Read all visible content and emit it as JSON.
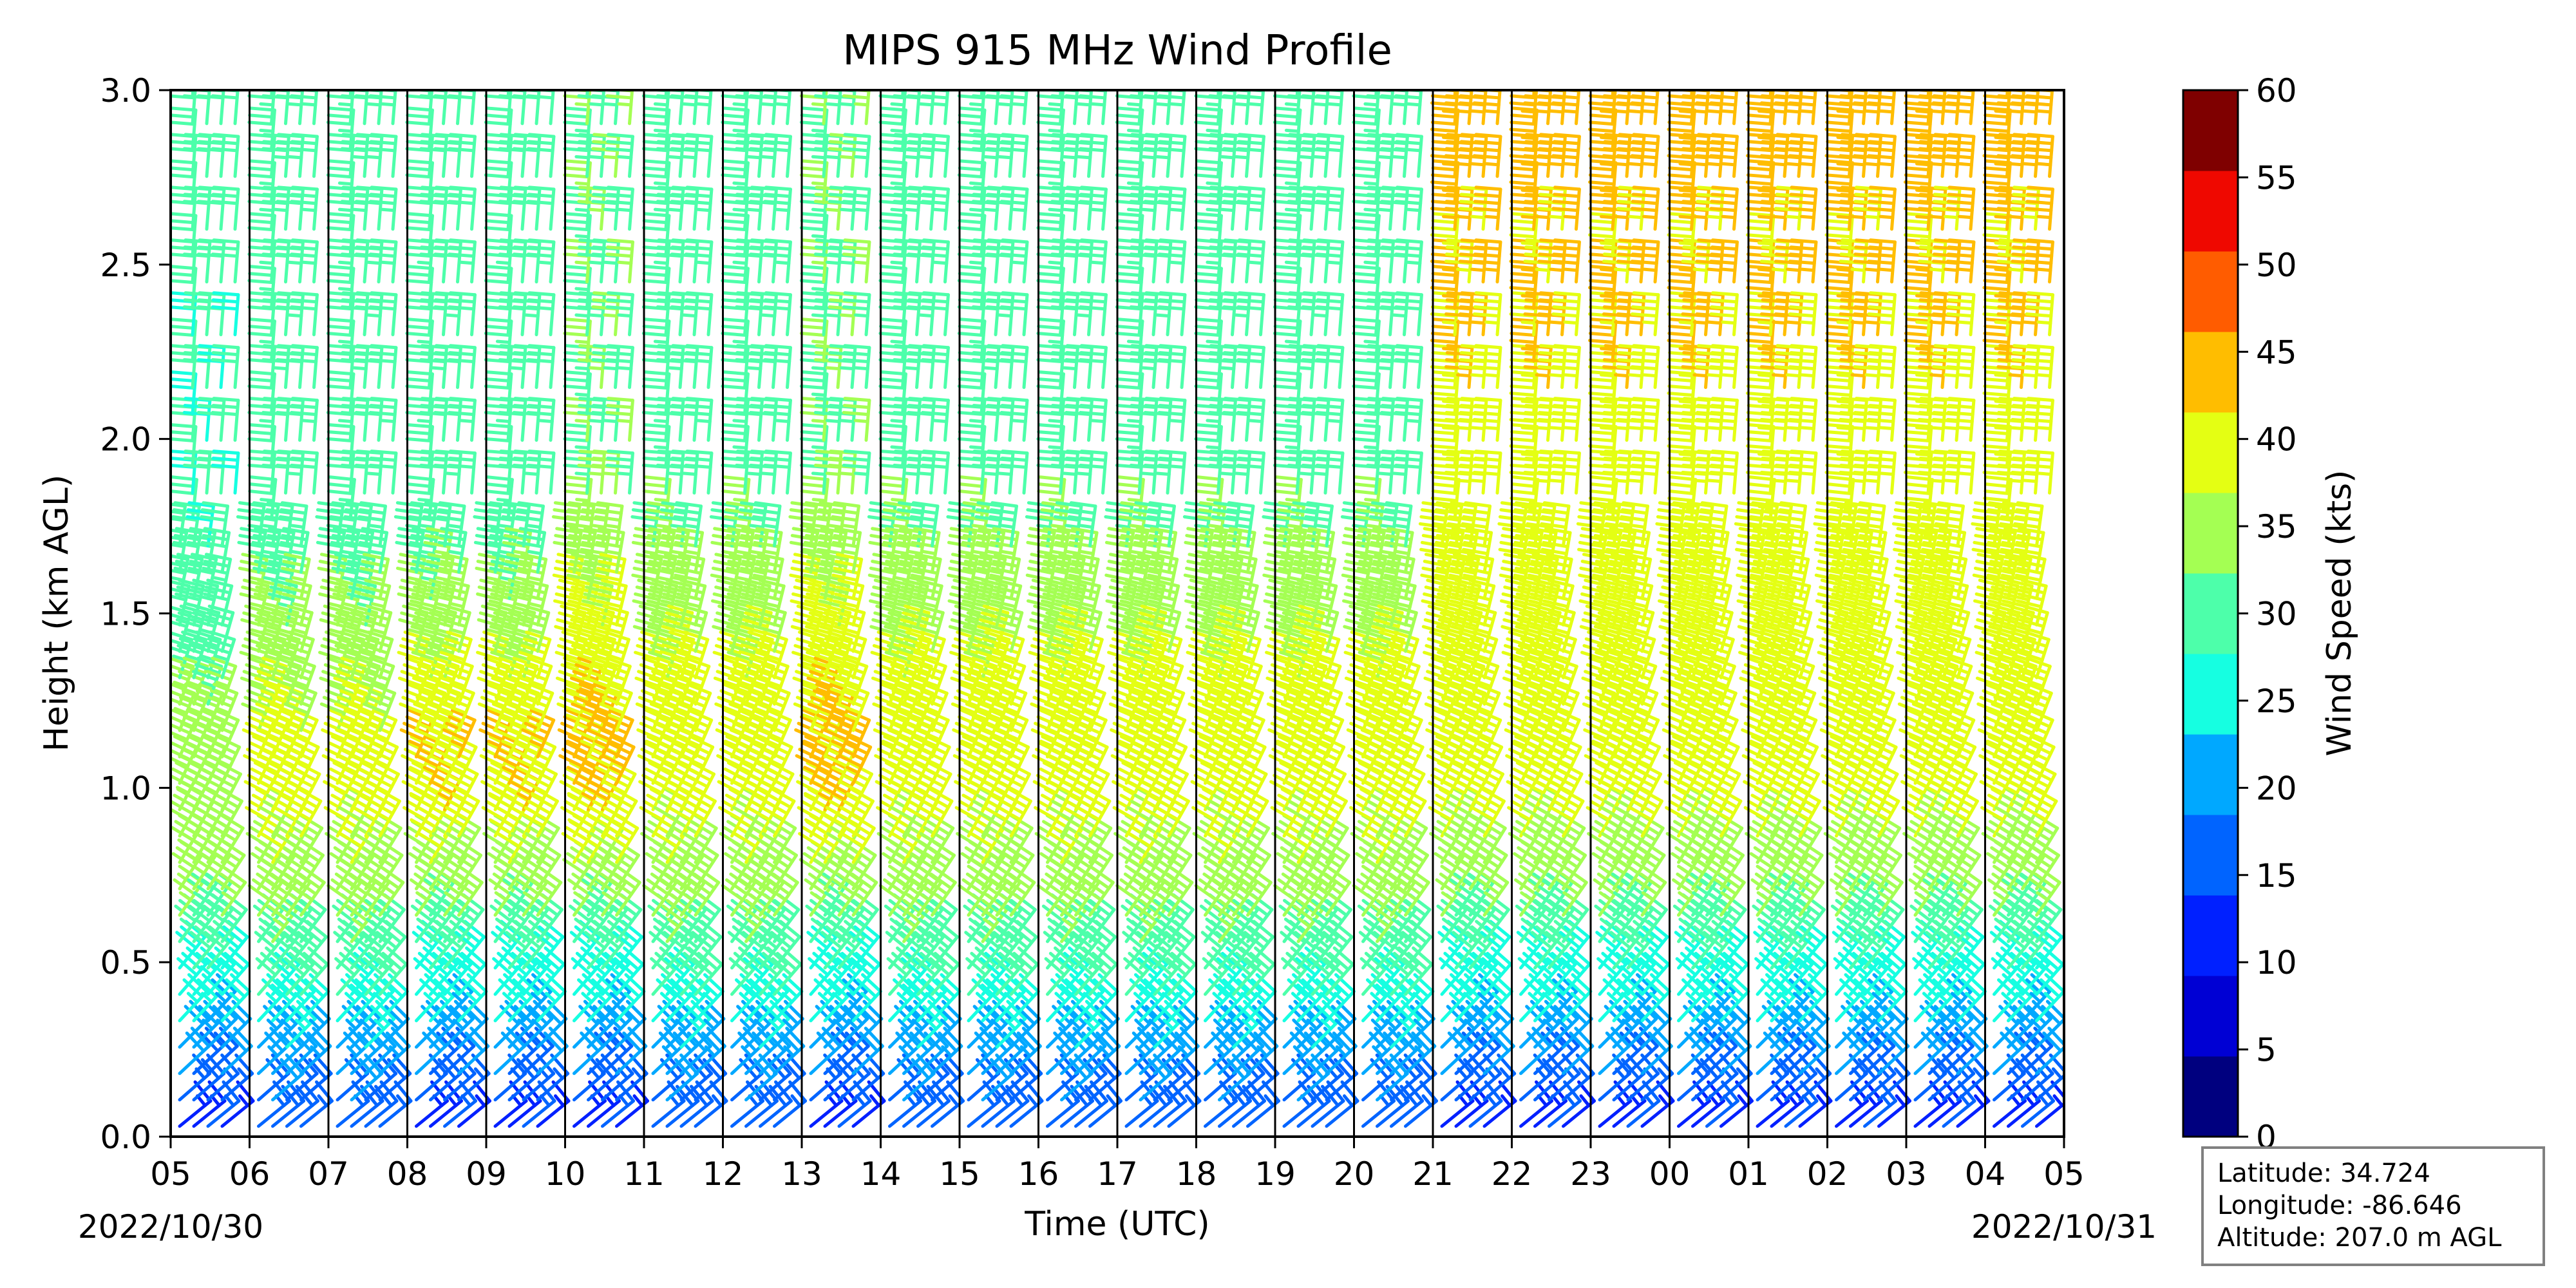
{
  "chart_data": {
    "type": "wind-barb-profile",
    "title": "MIPS 915 MHz Wind Profile",
    "xlabel": "Time (UTC)",
    "ylabel": "Height (km AGL)",
    "x_ticks": [
      "05",
      "06",
      "07",
      "08",
      "09",
      "10",
      "11",
      "12",
      "13",
      "14",
      "15",
      "16",
      "17",
      "18",
      "19",
      "20",
      "21",
      "22",
      "23",
      "00",
      "01",
      "02",
      "03",
      "04",
      "05"
    ],
    "start_date": "2022/10/30",
    "end_date": "2022/10/31",
    "ylim": [
      0,
      3.0
    ],
    "y_ticks": [
      "0.0",
      "0.5",
      "1.0",
      "1.5",
      "2.0",
      "2.5",
      "3.0"
    ],
    "hour_lines": true,
    "colorbar": {
      "label": "Wind Speed (kts)",
      "ticks": [
        "0",
        "5",
        "10",
        "15",
        "20",
        "25",
        "30",
        "35",
        "40",
        "45",
        "50",
        "55",
        "60"
      ],
      "colors": [
        "#00007f",
        "#0000d4",
        "#0020ff",
        "#0064ff",
        "#00a8ff",
        "#16ffe1",
        "#4dffaa",
        "#a4ff53",
        "#e4ff13",
        "#ffbd00",
        "#ff5c00",
        "#ef0800",
        "#7f0000"
      ]
    },
    "station": {
      "latitude": "Latitude: 34.724",
      "longitude": "Longitude: -86.646",
      "altitude": "Altitude: 207.0 m AGL"
    },
    "profiles": [
      {
        "hour": "05",
        "speeds": [
          14,
          20,
          27,
          33,
          37,
          38,
          37,
          34,
          32,
          31,
          30,
          30,
          30,
          31,
          31,
          31,
          31
        ]
      },
      {
        "hour": "06",
        "speeds": [
          17,
          22,
          29,
          35,
          39,
          42,
          41,
          38,
          35,
          33,
          32,
          32,
          32,
          33,
          33,
          33,
          33
        ]
      },
      {
        "hour": "07",
        "speeds": [
          17,
          22,
          29,
          35,
          39,
          42,
          41,
          38,
          35,
          33,
          32,
          32,
          32,
          33,
          33,
          33,
          33
        ]
      },
      {
        "hour": "08",
        "speeds": [
          14,
          20,
          27,
          33,
          39,
          44,
          44,
          40,
          36,
          33,
          32,
          32,
          32,
          32,
          31,
          31,
          31
        ]
      },
      {
        "hour": "09",
        "speeds": [
          14,
          20,
          27,
          33,
          39,
          44,
          44,
          40,
          36,
          33,
          32,
          32,
          32,
          32,
          31,
          31,
          31
        ]
      },
      {
        "hour": "10",
        "speeds": [
          14,
          20,
          27,
          33,
          40,
          45,
          46,
          44,
          40,
          37,
          35,
          34,
          34,
          34,
          34,
          34,
          34
        ]
      },
      {
        "hour": "11",
        "speeds": [
          17,
          22,
          29,
          35,
          39,
          42,
          43,
          41,
          38,
          35,
          33,
          32,
          32,
          32,
          33,
          33,
          33
        ]
      },
      {
        "hour": "12",
        "speeds": [
          17,
          22,
          29,
          35,
          39,
          42,
          43,
          41,
          38,
          35,
          33,
          32,
          32,
          32,
          33,
          33,
          33
        ]
      },
      {
        "hour": "13",
        "speeds": [
          14,
          20,
          27,
          33,
          40,
          45,
          46,
          44,
          40,
          37,
          35,
          34,
          34,
          34,
          34,
          34,
          34
        ]
      },
      {
        "hour": "14",
        "speeds": [
          17,
          22,
          29,
          35,
          39,
          42,
          43,
          41,
          38,
          35,
          33,
          32,
          32,
          32,
          33,
          33,
          33
        ]
      },
      {
        "hour": "15",
        "speeds": [
          17,
          22,
          29,
          35,
          39,
          42,
          43,
          41,
          38,
          35,
          33,
          32,
          32,
          32,
          33,
          33,
          33
        ]
      },
      {
        "hour": "16",
        "speeds": [
          17,
          22,
          29,
          35,
          39,
          42,
          43,
          41,
          38,
          35,
          33,
          32,
          32,
          32,
          33,
          33,
          33
        ]
      },
      {
        "hour": "17",
        "speeds": [
          17,
          22,
          29,
          35,
          39,
          42,
          43,
          41,
          38,
          35,
          33,
          32,
          32,
          32,
          33,
          33,
          33
        ]
      },
      {
        "hour": "18",
        "speeds": [
          17,
          22,
          29,
          35,
          39,
          42,
          43,
          41,
          38,
          35,
          33,
          32,
          32,
          32,
          33,
          33,
          33
        ]
      },
      {
        "hour": "19",
        "speeds": [
          17,
          22,
          29,
          35,
          39,
          42,
          43,
          41,
          38,
          35,
          33,
          32,
          32,
          32,
          33,
          33,
          33
        ]
      },
      {
        "hour": "20",
        "speeds": [
          17,
          22,
          29,
          35,
          39,
          42,
          43,
          41,
          38,
          35,
          33,
          32,
          32,
          32,
          33,
          33,
          33
        ]
      },
      {
        "hour": "21",
        "speeds": [
          14,
          20,
          27,
          33,
          38,
          41,
          42,
          41,
          41,
          42,
          43,
          44,
          45,
          45,
          46,
          46,
          46
        ]
      },
      {
        "hour": "22",
        "speeds": [
          14,
          20,
          27,
          33,
          38,
          41,
          42,
          41,
          41,
          42,
          43,
          44,
          45,
          45,
          46,
          46,
          46
        ]
      },
      {
        "hour": "23",
        "speeds": [
          14,
          20,
          27,
          33,
          38,
          41,
          42,
          41,
          41,
          42,
          43,
          44,
          45,
          45,
          46,
          46,
          46
        ]
      },
      {
        "hour": "00",
        "speeds": [
          14,
          20,
          27,
          33,
          38,
          41,
          42,
          41,
          41,
          42,
          43,
          44,
          45,
          45,
          46,
          46,
          46
        ]
      },
      {
        "hour": "01",
        "speeds": [
          14,
          20,
          27,
          33,
          38,
          41,
          42,
          41,
          41,
          42,
          43,
          44,
          45,
          45,
          46,
          46,
          46
        ]
      },
      {
        "hour": "02",
        "speeds": [
          14,
          20,
          27,
          33,
          38,
          41,
          42,
          41,
          41,
          42,
          43,
          44,
          45,
          45,
          46,
          46,
          46
        ]
      },
      {
        "hour": "03",
        "speeds": [
          14,
          20,
          27,
          33,
          38,
          41,
          42,
          41,
          41,
          42,
          43,
          44,
          45,
          45,
          46,
          46,
          46
        ]
      },
      {
        "hour": "04",
        "speeds": [
          14,
          20,
          27,
          33,
          38,
          41,
          42,
          41,
          41,
          42,
          43,
          44,
          45,
          45,
          46,
          46,
          46
        ]
      }
    ]
  }
}
